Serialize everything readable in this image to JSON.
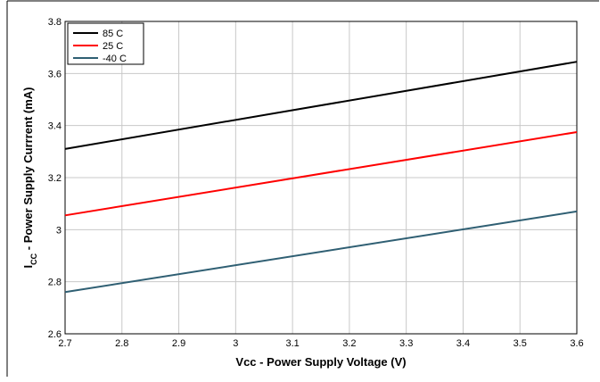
{
  "chart_data": {
    "type": "line",
    "xlabel": "Vcc - Power Supply Voltage  (V)",
    "ylabel_main": "I",
    "ylabel_sub": "CC",
    "ylabel_rest": " - Power Supply Currrent (mA)",
    "xlim": [
      2.7,
      3.6
    ],
    "ylim": [
      2.6,
      3.8
    ],
    "xticks": [
      2.7,
      2.8,
      2.9,
      3.0,
      3.1,
      3.2,
      3.3,
      3.4,
      3.5,
      3.6
    ],
    "xtick_labels": [
      "2.7",
      "2.8",
      "2.9",
      "3",
      "3.1",
      "3.2",
      "3.3",
      "3.4",
      "3.5",
      "3.6"
    ],
    "yticks": [
      2.6,
      2.8,
      3.0,
      3.2,
      3.4,
      3.6,
      3.8
    ],
    "ytick_labels": [
      "2.6",
      "2.8",
      "3",
      "3.2",
      "3.4",
      "3.6",
      "3.8"
    ],
    "grid": true,
    "legend_position": "top-left",
    "series": [
      {
        "name": "85 C",
        "color": "#000000",
        "x": [
          2.7,
          3.6
        ],
        "y": [
          3.31,
          3.645
        ]
      },
      {
        "name": "25 C",
        "color": "#ff0000",
        "x": [
          2.7,
          3.6
        ],
        "y": [
          3.055,
          3.375
        ]
      },
      {
        "name": "-40 C",
        "color": "#2f5f73",
        "x": [
          2.7,
          3.6
        ],
        "y": [
          2.76,
          3.07
        ]
      }
    ]
  }
}
